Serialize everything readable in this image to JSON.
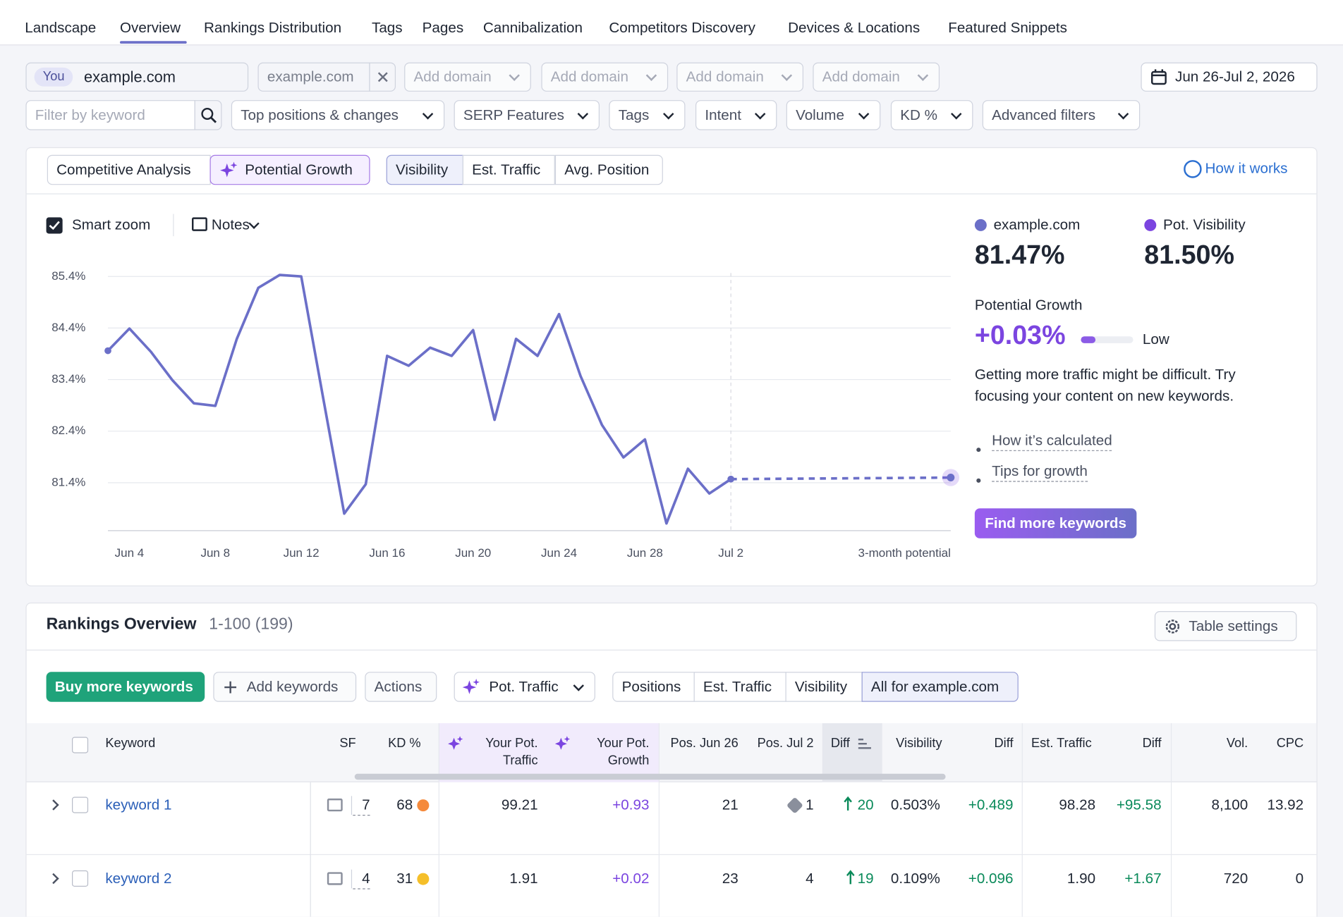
{
  "nav": {
    "tabs": [
      "Landscape",
      "Overview",
      "Rankings Distribution",
      "Tags",
      "Pages",
      "Cannibalization",
      "Competitors Discovery",
      "Devices & Locations",
      "Featured Snippets"
    ]
  },
  "domains": {
    "you_badge": "You",
    "you": "example.com",
    "competitor": "example.com",
    "add": [
      "Add domain",
      "Add domain",
      "Add domain",
      "Add domain"
    ],
    "date": "Jun 26-Jul 2, 2026"
  },
  "filters": {
    "keyword_placeholder": "Filter by keyword",
    "dropdowns": [
      "Top positions & changes",
      "SERP Features",
      "Tags",
      "Intent",
      "Volume",
      "KD %",
      "Advanced filters"
    ]
  },
  "chart_panel": {
    "modes": [
      "Competitive Analysis",
      "Potential Growth"
    ],
    "metrics": [
      "Visibility",
      "Est. Traffic",
      "Avg. Position"
    ],
    "how": "How it works",
    "smart_zoom": "Smart zoom",
    "notes": "Notes"
  },
  "chart_data": {
    "type": "line",
    "categories": [
      null,
      "Jun 4",
      null,
      null,
      null,
      "Jun 8",
      null,
      null,
      null,
      "Jun 12",
      null,
      null,
      null,
      "Jun 16",
      null,
      null,
      null,
      "Jun 20",
      null,
      null,
      null,
      "Jun 24",
      null,
      null,
      null,
      "Jun 28",
      null,
      null,
      null,
      "Jul 2",
      "3-month potential"
    ],
    "series": [
      {
        "name": "example.com",
        "color": "#6b6fc8",
        "values": [
          83.96,
          84.39,
          83.94,
          83.39,
          82.94,
          82.89,
          84.19,
          85.18,
          85.43,
          85.4,
          83.09,
          80.8,
          81.37,
          83.86,
          83.67,
          84.02,
          83.86,
          84.36,
          82.62,
          84.19,
          83.86,
          84.67,
          83.47,
          82.52,
          81.89,
          82.24,
          80.61,
          81.67,
          81.19,
          81.47,
          null
        ]
      },
      {
        "name": "Pot. Visibility",
        "color": "#7b45e0",
        "values": [
          null,
          null,
          null,
          null,
          null,
          null,
          null,
          null,
          null,
          null,
          null,
          null,
          null,
          null,
          null,
          null,
          null,
          null,
          null,
          null,
          null,
          null,
          null,
          null,
          null,
          null,
          null,
          null,
          null,
          81.47,
          81.5
        ]
      }
    ],
    "ylim": [
      80.47,
      85.6
    ],
    "yticks": [
      {
        "value": 81.4,
        "label": "81.4%"
      },
      {
        "value": 82.4,
        "label": "82.4%"
      },
      {
        "value": 83.4,
        "label": "83.4%"
      },
      {
        "value": 84.4,
        "label": "84.4%"
      },
      {
        "value": 85.4,
        "label": "85.4%"
      }
    ],
    "grid": true
  },
  "summary": {
    "values": [
      "81.47%",
      "81.50%"
    ],
    "growth_label": "Potential Growth",
    "growth_value": "+0.03%",
    "growth_level": "Low",
    "text": "Getting more traffic might be difficult. Try focusing your content on new keywords.",
    "links": [
      "How it’s calculated",
      "Tips for growth"
    ],
    "button": "Find more keywords"
  },
  "rankings": {
    "title": "Rankings Overview",
    "range": "1-100 (199)",
    "table_settings": "Table settings",
    "buttons": [
      "Buy more keywords",
      "Add keywords",
      "Actions"
    ],
    "pot_traffic": "Pot. Traffic",
    "views": [
      "Positions",
      "Est. Traffic",
      "Visibility",
      "All for example.com"
    ]
  },
  "table": {
    "columns": [
      "Keyword",
      "SF",
      "KD %",
      "Your Pot. Traffic",
      "Your Pot. Growth",
      "Pos. Jun 26",
      "Pos. Jul 2",
      "Diff",
      "Visibility",
      "Diff",
      "Est. Traffic",
      "Diff",
      "Vol.",
      "CPC"
    ],
    "rows": [
      [
        "keyword 1",
        "7",
        "68",
        "99.21",
        "+0.93",
        "21",
        "1",
        "20",
        "0.503%",
        "+0.489",
        "98.28",
        "+95.58",
        "8,100",
        "13.92"
      ],
      [
        "keyword 2",
        "4",
        "31",
        "1.91",
        "+0.02",
        "23",
        "4",
        "19",
        "0.109%",
        "+0.096",
        "1.90",
        "+1.67",
        "720",
        "0"
      ]
    ]
  }
}
